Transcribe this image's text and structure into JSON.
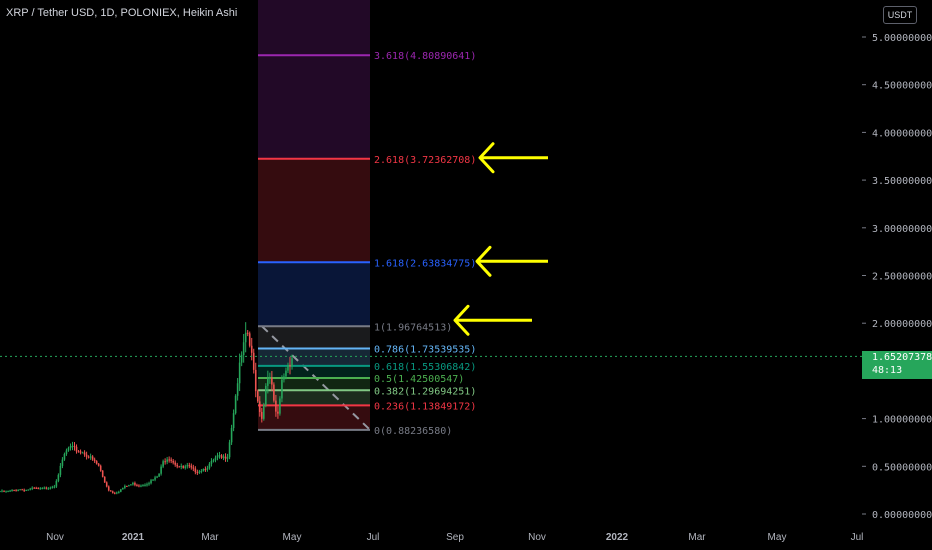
{
  "header": {
    "title": "XRP / Tether USD, 1D, POLONIEX, Heikin Ashi",
    "currency": "USDT"
  },
  "colors": {
    "background": "#000000",
    "up": "#26a65b",
    "down": "#ef5350",
    "price_line": "#26a65b",
    "axis_text": "#b2b5be",
    "arrow": "#ffff00"
  },
  "chart_data": {
    "type": "candlestick",
    "symbol": "XRP/USDT",
    "ylim": [
      0,
      5.2
    ],
    "y_ticks": [
      "0.00000000",
      "0.50000000",
      "1.00000000",
      "1.50000000",
      "2.00000000",
      "2.50000000",
      "3.00000000",
      "3.50000000",
      "4.00000000",
      "4.50000000",
      "5.00000000"
    ],
    "x_ticks": [
      "Nov",
      "2021",
      "Mar",
      "May",
      "Jul",
      "Sep",
      "Nov",
      "2022",
      "Mar",
      "May",
      "Jul"
    ],
    "last_price": "1.65207378",
    "countdown": "48:13",
    "fib_levels": [
      {
        "ratio": 0,
        "price": 0.8823658,
        "label": "0(0.88236580)",
        "color": "#787b86"
      },
      {
        "ratio": 0.236,
        "price": 1.13849172,
        "label": "0.236(1.13849172)",
        "color": "#f23645"
      },
      {
        "ratio": 0.382,
        "price": 1.29694251,
        "label": "0.382(1.29694251)",
        "color": "#81c784"
      },
      {
        "ratio": 0.5,
        "price": 1.42500547,
        "label": "0.5(1.42500547)",
        "color": "#4caf50"
      },
      {
        "ratio": 0.618,
        "price": 1.55306842,
        "label": "0.618(1.55306842)",
        "color": "#089981"
      },
      {
        "ratio": 0.786,
        "price": 1.73539535,
        "label": "0.786(1.73539535)",
        "color": "#64b5f6"
      },
      {
        "ratio": 1,
        "price": 1.96764513,
        "label": "1(1.96764513)",
        "color": "#787b86"
      },
      {
        "ratio": 1.618,
        "price": 2.63834775,
        "label": "1.618(2.63834775)",
        "color": "#2962ff"
      },
      {
        "ratio": 2.618,
        "price": 3.72362708,
        "label": "2.618(3.72362708)",
        "color": "#f23645"
      },
      {
        "ratio": 3.618,
        "price": 4.80890641,
        "label": "3.618(4.80890641)",
        "color": "#9c27b0"
      }
    ],
    "arrows_point_to": [
      "2.618",
      "1.618",
      "1"
    ],
    "approx_price_path": [
      0.24,
      0.23,
      0.24,
      0.25,
      0.26,
      0.25,
      0.26,
      0.27,
      0.26,
      0.27,
      0.28,
      0.3,
      0.45,
      0.62,
      0.7,
      0.68,
      0.66,
      0.64,
      0.6,
      0.55,
      0.5,
      0.35,
      0.25,
      0.22,
      0.24,
      0.28,
      0.3,
      0.32,
      0.3,
      0.31,
      0.33,
      0.36,
      0.4,
      0.55,
      0.6,
      0.55,
      0.5,
      0.48,
      0.5,
      0.46,
      0.45,
      0.47,
      0.5,
      0.55,
      0.6,
      0.58,
      0.62,
      1.0,
      1.4,
      1.7,
      1.9,
      1.6,
      1.2,
      1.0,
      1.5,
      1.3,
      0.95,
      1.4,
      1.55,
      1.65
    ]
  }
}
